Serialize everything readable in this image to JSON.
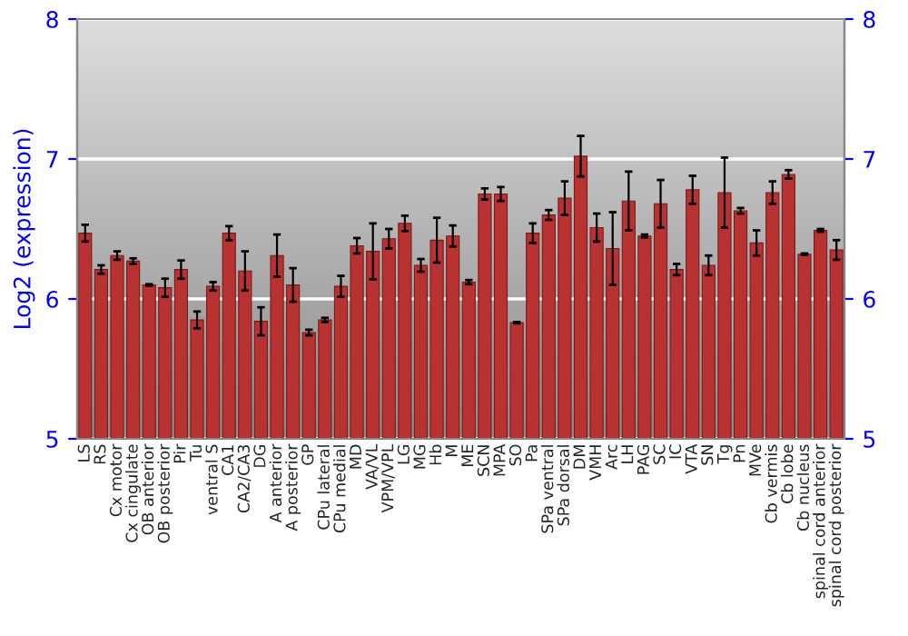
{
  "chart_data": {
    "type": "bar",
    "ylabel": "Log2 (expression)",
    "categories": [
      "LS",
      "RS",
      "Cx motor",
      "Cx cingulate",
      "OB anterior",
      "OB posterior",
      "Pir",
      "Tu",
      "ventral S",
      "CA1",
      "CA2/CA3",
      "DG",
      "A anterior",
      "A posterior",
      "GP",
      "CPu lateral",
      "CPu medial",
      "MD",
      "VA/VL",
      "VPM/VPL",
      "LG",
      "MG",
      "Hb",
      "M",
      "ME",
      "SCN",
      "MPA",
      "SO",
      "Pa",
      "SPa ventral",
      "SPa dorsal",
      "DM",
      "VMH",
      "Arc",
      "LH",
      "PAG",
      "SC",
      "IC",
      "VTA",
      "SN",
      "Tg",
      "Pn",
      "MVe",
      "Cb vermis",
      "Cb lobe",
      "Cb nucleus",
      "spinal cord anterior",
      "spinal cord posterior"
    ],
    "values": [
      6.47,
      6.21,
      6.31,
      6.27,
      6.1,
      6.08,
      6.21,
      5.85,
      6.09,
      6.47,
      6.2,
      5.84,
      6.31,
      6.1,
      5.76,
      5.85,
      6.09,
      6.38,
      6.34,
      6.43,
      6.54,
      6.24,
      6.42,
      6.45,
      6.12,
      6.75,
      6.75,
      5.83,
      6.47,
      6.6,
      6.72,
      7.02,
      6.51,
      6.36,
      6.7,
      6.45,
      6.68,
      6.21,
      6.78,
      6.24,
      6.76,
      6.63,
      6.4,
      6.76,
      6.89,
      6.32,
      6.49,
      6.35
    ],
    "errors": [
      0.06,
      0.03,
      0.03,
      0.02,
      0.005,
      0.065,
      0.065,
      0.06,
      0.03,
      0.05,
      0.14,
      0.1,
      0.15,
      0.12,
      0.02,
      0.015,
      0.075,
      0.055,
      0.2,
      0.07,
      0.055,
      0.045,
      0.16,
      0.075,
      0.015,
      0.04,
      0.05,
      0.005,
      0.07,
      0.035,
      0.12,
      0.145,
      0.1,
      0.26,
      0.21,
      0.01,
      0.17,
      0.04,
      0.1,
      0.07,
      0.25,
      0.02,
      0.09,
      0.08,
      0.03,
      0.005,
      0.01,
      0.07
    ],
    "color": "#b83232",
    "ylim": [
      5,
      8
    ],
    "yticks": [
      5,
      6,
      7,
      8
    ],
    "y2lim": [
      5,
      8
    ],
    "y2ticks": [
      5,
      6,
      7,
      8
    ],
    "grid": "y"
  }
}
